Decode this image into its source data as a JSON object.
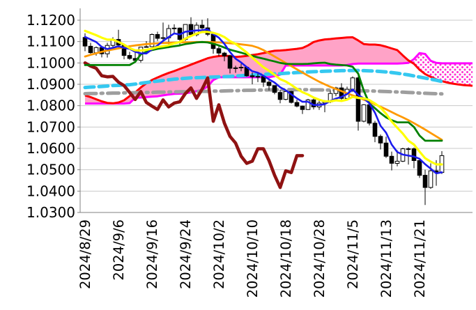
{
  "chart_data": {
    "type": "candlestick_with_overlays",
    "title": "",
    "instrument_hint": "EUR/USD daily with ichimoku cloud and moving averages (no legend shown)",
    "ylim": [
      1.03,
      1.1256
    ],
    "grid": "horizontal",
    "y_ticks": [
      "1.1200",
      "1.1100",
      "1.1000",
      "1.0900",
      "1.0800",
      "1.0700",
      "1.0600",
      "1.0500",
      "1.0400",
      "1.0300"
    ],
    "x_labels": [
      "2024/8/29",
      "2024/9/6",
      "2024/9/16",
      "2024/9/24",
      "2024/10/2",
      "2024/10/10",
      "2024/10/18",
      "2024/10/28",
      "2024/11/5",
      "2024/11/13",
      "2024/11/21"
    ],
    "x_label_indices": [
      0,
      6,
      12,
      18,
      24,
      30,
      36,
      42,
      48,
      54,
      60
    ],
    "candle_count": 65,
    "candles_ohlc": [
      [
        1.1119,
        1.1139,
        1.1055,
        1.1079
      ],
      [
        1.1078,
        1.1094,
        1.1043,
        1.1048
      ],
      [
        1.1048,
        1.1077,
        1.1034,
        1.1072
      ],
      [
        1.1072,
        1.108,
        1.1026,
        1.1043
      ],
      [
        1.1043,
        1.1094,
        1.1025,
        1.1082
      ],
      [
        1.1082,
        1.112,
        1.1065,
        1.111
      ],
      [
        1.111,
        1.1155,
        1.1066,
        1.1084
      ],
      [
        1.1084,
        1.109,
        1.1017,
        1.1035
      ],
      [
        1.1035,
        1.1052,
        1.1015,
        1.1021
      ],
      [
        1.1021,
        1.1055,
        1.1001,
        1.1012
      ],
      [
        1.1012,
        1.1075,
        1.1002,
        1.1074
      ],
      [
        1.1074,
        1.1102,
        1.1071,
        1.1076
      ],
      [
        1.1076,
        1.1138,
        1.1074,
        1.1133
      ],
      [
        1.1133,
        1.1146,
        1.1103,
        1.1115
      ],
      [
        1.1115,
        1.1189,
        1.1093,
        1.1118
      ],
      [
        1.1118,
        1.1179,
        1.1069,
        1.1161
      ],
      [
        1.1161,
        1.1181,
        1.1135,
        1.1163
      ],
      [
        1.1163,
        1.1166,
        1.1083,
        1.111
      ],
      [
        1.111,
        1.1181,
        1.1103,
        1.118
      ],
      [
        1.118,
        1.1214,
        1.1122,
        1.1132
      ],
      [
        1.1132,
        1.119,
        1.1124,
        1.1177
      ],
      [
        1.1177,
        1.1202,
        1.1152,
        1.1164
      ],
      [
        1.1164,
        1.1209,
        1.1126,
        1.1134
      ],
      [
        1.1134,
        1.1143,
        1.1043,
        1.1067
      ],
      [
        1.1067,
        1.1082,
        1.1032,
        1.1046
      ],
      [
        1.1046,
        1.1052,
        1.1008,
        1.1033
      ],
      [
        1.1033,
        1.1038,
        1.0951,
        1.0975
      ],
      [
        1.0975,
        1.0987,
        1.0954,
        1.0977
      ],
      [
        1.0977,
        1.0996,
        1.0961,
        1.098
      ],
      [
        1.098,
        1.0984,
        1.0936,
        1.094
      ],
      [
        1.094,
        1.0955,
        1.09,
        1.0935
      ],
      [
        1.0935,
        1.0955,
        1.091,
        1.0937
      ],
      [
        1.0937,
        1.094,
        1.0888,
        1.091
      ],
      [
        1.091,
        1.092,
        1.0871,
        1.0894
      ],
      [
        1.0894,
        1.0895,
        1.0853,
        1.0862
      ],
      [
        1.0862,
        1.0874,
        1.0811,
        1.0829
      ],
      [
        1.0829,
        1.087,
        1.0825,
        1.0866
      ],
      [
        1.0866,
        1.0869,
        1.081,
        1.0815
      ],
      [
        1.0815,
        1.0828,
        1.0792,
        1.0798
      ],
      [
        1.0798,
        1.08,
        1.0761,
        1.0782
      ],
      [
        1.0782,
        1.0832,
        1.078,
        1.0827
      ],
      [
        1.0827,
        1.0839,
        1.0782,
        1.0794
      ],
      [
        1.0794,
        1.0826,
        1.078,
        1.0812
      ],
      [
        1.0812,
        1.0826,
        1.0769,
        1.0818
      ],
      [
        1.0818,
        1.0871,
        1.0812,
        1.0857
      ],
      [
        1.0857,
        1.0888,
        1.0844,
        1.0883
      ],
      [
        1.0883,
        1.0905,
        1.0828,
        1.0834
      ],
      [
        1.0834,
        1.0889,
        1.0832,
        1.0877
      ],
      [
        1.0877,
        1.0937,
        1.0866,
        1.093
      ],
      [
        1.093,
        1.0937,
        1.0683,
        1.0727
      ],
      [
        1.0727,
        1.0807,
        1.0722,
        1.0804
      ],
      [
        1.0804,
        1.0807,
        1.0707,
        1.0718
      ],
      [
        1.0718,
        1.0729,
        1.0629,
        1.0656
      ],
      [
        1.0656,
        1.0665,
        1.0595,
        1.0625
      ],
      [
        1.0625,
        1.0655,
        1.0555,
        1.0563
      ],
      [
        1.0563,
        1.0585,
        1.0497,
        1.053
      ],
      [
        1.053,
        1.0592,
        1.0516,
        1.054
      ],
      [
        1.054,
        1.0603,
        1.0536,
        1.0598
      ],
      [
        1.0598,
        1.0605,
        1.0524,
        1.0598
      ],
      [
        1.0598,
        1.0604,
        1.0507,
        1.0543
      ],
      [
        1.0543,
        1.0555,
        1.0462,
        1.0474
      ],
      [
        1.0474,
        1.05,
        1.0335,
        1.0417
      ],
      [
        1.0417,
        1.053,
        1.0411,
        1.0495
      ],
      [
        1.0495,
        1.0545,
        1.0425,
        1.0487
      ],
      [
        1.0487,
        1.0587,
        1.048,
        1.0566
      ]
    ],
    "series": [
      {
        "name": "blue-ma-short",
        "color": "#1a1aee",
        "width": 2.6,
        "dash": "",
        "values": [
          1.1122,
          1.111,
          1.1098,
          1.1075,
          1.1065,
          1.1071,
          1.1078,
          1.1071,
          1.1066,
          1.1052,
          1.1045,
          1.1044,
          1.1063,
          1.1082,
          1.1103,
          1.1121,
          1.1138,
          1.1133,
          1.1146,
          1.1149,
          1.1152,
          1.1153,
          1.1157,
          1.1135,
          1.1118,
          1.1089,
          1.1051,
          1.102,
          1.1002,
          1.0981,
          1.0961,
          1.0954,
          1.094,
          1.0923,
          1.0908,
          1.0886,
          1.0872,
          1.0853,
          1.0834,
          1.0818,
          1.0818,
          1.0803,
          1.0803,
          1.0807,
          1.0822,
          1.0833,
          1.0841,
          1.0854,
          1.0876,
          1.085,
          1.0834,
          1.0811,
          1.0767,
          1.0706,
          1.0673,
          1.0618,
          1.0583,
          1.0571,
          1.0566,
          1.0562,
          1.0551,
          1.0526,
          1.0505,
          1.0483,
          1.0488
        ]
      },
      {
        "name": "yellow-ma-mid",
        "color": "#ffff00",
        "width": 3.2,
        "dash": "",
        "values": [
          1.115,
          1.114,
          1.113,
          1.1118,
          1.1109,
          1.1109,
          1.1098,
          1.1086,
          1.1069,
          1.1059,
          1.1058,
          1.1061,
          1.1067,
          1.1074,
          1.1078,
          1.1083,
          1.1091,
          1.1098,
          1.1114,
          1.1126,
          1.1137,
          1.1145,
          1.1145,
          1.1141,
          1.1133,
          1.1121,
          1.1102,
          1.1089,
          1.1069,
          1.1049,
          1.1025,
          1.1002,
          1.098,
          1.0963,
          1.0944,
          1.0924,
          1.0913,
          1.0897,
          1.0879,
          1.0863,
          1.0852,
          1.0838,
          1.0828,
          1.082,
          1.082,
          1.0825,
          1.0822,
          1.0828,
          1.0841,
          1.0836,
          1.0834,
          1.0826,
          1.081,
          1.0791,
          1.0762,
          1.0726,
          1.0697,
          1.0669,
          1.0636,
          1.0618,
          1.0585,
          1.0554,
          1.0538,
          1.0525,
          1.0525
        ]
      },
      {
        "name": "green-baseline",
        "color": "#008000",
        "width": 2.8,
        "dash": "",
        "values": [
          1.099,
          1.099,
          1.099,
          1.099,
          1.099,
          1.099,
          1.099,
          1.099,
          1.099,
          1.1005,
          1.104,
          1.1052,
          1.106,
          1.1066,
          1.107,
          1.1074,
          1.1078,
          1.1082,
          1.1088,
          1.1092,
          1.1096,
          1.1098,
          1.1096,
          1.109,
          1.1082,
          1.1072,
          1.1062,
          1.1055,
          1.1048,
          1.104,
          1.1033,
          1.1026,
          1.102,
          1.1013,
          1.1007,
          1.1,
          1.0996,
          1.0995,
          1.0995,
          1.0995,
          1.0996,
          1.0998,
          1.1,
          1.1001,
          1.0995,
          1.0992,
          1.099,
          1.0988,
          1.0982,
          1.095,
          1.087,
          1.081,
          1.0788,
          1.0765,
          1.0745,
          1.0732,
          1.0722,
          1.0722,
          1.0722,
          1.07,
          1.066,
          1.0636,
          1.0636,
          1.0636,
          1.0636
        ]
      },
      {
        "name": "orange-ma-long",
        "color": "#ff9900",
        "width": 2.8,
        "dash": "",
        "values": [
          1.103,
          1.1038,
          1.1045,
          1.1052,
          1.1058,
          1.1063,
          1.1068,
          1.1073,
          1.1078,
          1.1082,
          1.1085,
          1.1088,
          1.109,
          1.1092,
          1.1093,
          1.1094,
          1.1095,
          1.1096,
          1.1097,
          1.1097,
          1.1098,
          1.1098,
          1.1098,
          1.1097,
          1.1096,
          1.1094,
          1.1092,
          1.109,
          1.1087,
          1.1084,
          1.108,
          1.1072,
          1.106,
          1.1045,
          1.103,
          1.1015,
          1.1,
          1.0985,
          1.097,
          1.0955,
          1.094,
          1.0926,
          1.0912,
          1.09,
          1.0888,
          1.0878,
          1.0868,
          1.0858,
          1.0848,
          1.0838,
          1.0828,
          1.0818,
          1.0806,
          1.0795,
          1.0783,
          1.077,
          1.0757,
          1.0745,
          1.0732,
          1.0718,
          1.0703,
          1.0688,
          1.0672,
          1.0656,
          1.064
        ]
      },
      {
        "name": "cyan-dashed-longterm",
        "color": "#35c8f0",
        "width": 5,
        "dash": "13 7",
        "values": [
          1.0885,
          1.0887,
          1.0888,
          1.089,
          1.0892,
          1.0894,
          1.0895,
          1.0897,
          1.0898,
          1.0901,
          1.0905,
          1.0908,
          1.0912,
          1.0915,
          1.0918,
          1.0921,
          1.0924,
          1.0926,
          1.0928,
          1.093,
          1.0931,
          1.0932,
          1.0933,
          1.0934,
          1.0935,
          1.0936,
          1.0937,
          1.0939,
          1.094,
          1.0942,
          1.0943,
          1.0945,
          1.0946,
          1.0948,
          1.0949,
          1.095,
          1.0952,
          1.0953,
          1.0955,
          1.0956,
          1.0958,
          1.0959,
          1.096,
          1.0961,
          1.0962,
          1.0963,
          1.0964,
          1.0964,
          1.0965,
          1.0965,
          1.0964,
          1.0963,
          1.0962,
          1.096,
          1.0958,
          1.0955,
          1.0952,
          1.0948,
          1.0944,
          1.0939,
          1.0934,
          1.0929,
          1.0924,
          1.0919,
          1.0913
        ]
      },
      {
        "name": "gray-dashdot-longterm",
        "color": "#9e9e9e",
        "width": 5,
        "dash": "16 7 2.5 7",
        "values": [
          1.0856,
          1.0857,
          1.0857,
          1.0858,
          1.0858,
          1.0859,
          1.0859,
          1.086,
          1.086,
          1.0861,
          1.0861,
          1.0862,
          1.0862,
          1.0863,
          1.0863,
          1.0864,
          1.0864,
          1.0865,
          1.0865,
          1.0866,
          1.0866,
          1.0867,
          1.0867,
          1.0868,
          1.0868,
          1.0869,
          1.087,
          1.087,
          1.0871,
          1.0872,
          1.0872,
          1.0873,
          1.0873,
          1.0874,
          1.0874,
          1.0875,
          1.0875,
          1.0875,
          1.0875,
          1.0875,
          1.0875,
          1.0874,
          1.0874,
          1.0873,
          1.0873,
          1.0872,
          1.0872,
          1.0871,
          1.0871,
          1.087,
          1.0869,
          1.0869,
          1.0868,
          1.0867,
          1.0866,
          1.0865,
          1.0864,
          1.0863,
          1.0862,
          1.0861,
          1.0859,
          1.0858,
          1.0857,
          1.0856,
          1.0855
        ]
      },
      {
        "name": "darkred-lagging-span",
        "color": "#8f1212",
        "width": 4.6,
        "dash": "",
        "values": [
          1.1,
          1.0985,
          1.0975,
          1.094,
          1.0935,
          1.0937,
          1.091,
          1.0894,
          1.0862,
          1.0829,
          1.0866,
          1.0815,
          1.0798,
          1.0782,
          1.0827,
          1.0794,
          1.0812,
          1.0818,
          1.0857,
          1.0883,
          1.0834,
          1.0877,
          1.093,
          1.0727,
          1.0804,
          1.0718,
          1.0656,
          1.0625,
          1.0563,
          1.053,
          1.054,
          1.0598,
          1.0598,
          1.0543,
          1.0474,
          1.0417,
          1.0495,
          1.0487,
          1.0566,
          1.0566
        ]
      }
    ],
    "cloud": {
      "span_a_name": "red-senkou-a",
      "span_a_color": "#ff0000",
      "span_a_width": 3,
      "span_b_name": "magenta-senkou-b",
      "span_b_color": "#ff00ff",
      "span_b_width": 3,
      "solid_fill": "#ffa3c7",
      "dotted_dot_color": "#ff2fd0",
      "span_a": [
        1.0848,
        1.084,
        1.083,
        1.082,
        1.0813,
        1.0811,
        1.0815,
        1.0825,
        1.0845,
        1.0862,
        1.0885,
        1.0905,
        1.092,
        1.0932,
        1.0943,
        1.0953,
        1.0962,
        1.0972,
        1.0982,
        1.0992,
        1.1002,
        1.1012,
        1.1022,
        1.1028,
        1.1032,
        1.1034,
        1.1032,
        1.1028,
        1.103,
        1.1033,
        1.1037,
        1.1041,
        1.1046,
        1.1052,
        1.1057,
        1.1058,
        1.106,
        1.1063,
        1.1066,
        1.107,
        1.1082,
        1.1098,
        1.1105,
        1.111,
        1.1112,
        1.1115,
        1.1117,
        1.1119,
        1.112,
        1.1105,
        1.1088,
        1.1086,
        1.1086,
        1.1083,
        1.1076,
        1.1068,
        1.106,
        1.1035,
        1.1012,
        1.0996,
        1.0968,
        1.0948,
        1.0935,
        1.0923,
        1.0915,
        1.0908,
        1.0903,
        1.0899,
        1.0896,
        1.0894,
        1.0893
      ],
      "span_b": [
        1.081,
        1.081,
        1.081,
        1.081,
        1.081,
        1.081,
        1.081,
        1.081,
        1.0812,
        1.0837,
        1.0838,
        1.084,
        1.0842,
        1.0844,
        1.0848,
        1.0852,
        1.0855,
        1.0856,
        1.0858,
        1.0862,
        1.0868,
        1.0874,
        1.089,
        1.092,
        1.0933,
        1.0933,
        1.0933,
        1.0933,
        1.0933,
        1.0933,
        1.0933,
        1.0933,
        1.0933,
        1.0933,
        1.0938,
        1.0945,
        1.0988,
        1.0988,
        1.0988,
        1.0988,
        1.0988,
        1.0988,
        1.0988,
        1.0988,
        1.0988,
        1.0988,
        1.0988,
        1.099,
        1.0995,
        1.0997,
        1.0997,
        1.0997,
        1.0997,
        1.0997,
        1.0997,
        1.0997,
        1.0997,
        1.0998,
        1.1,
        1.1018,
        1.1046,
        1.1042,
        1.101,
        1.1,
        1.0998,
        1.0998,
        1.0998,
        1.0998,
        1.0998,
        1.0998,
        1.0998
      ]
    },
    "candle_up_fill": "#ffffff",
    "candle_down_fill": "#000000",
    "candle_stroke": "#000000",
    "gridline_color": "#c9c9c9",
    "axis_line_color": "#808080",
    "label_color": "#000000",
    "background": "#ffffff"
  }
}
